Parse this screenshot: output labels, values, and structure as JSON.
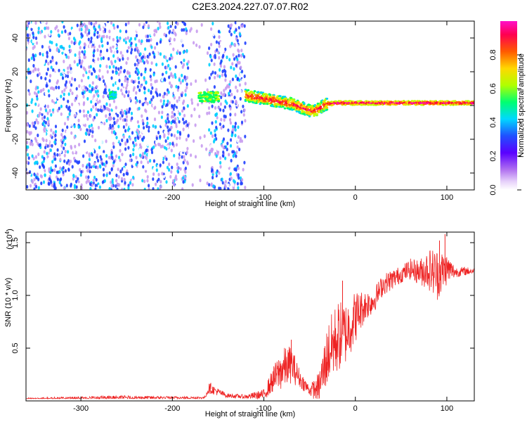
{
  "page": {
    "title": "C2E3.2024.227.07.07.R02"
  },
  "chart_data": [
    {
      "type": "heatmap",
      "title": "C2E3.2024.227.07.07.R02",
      "xlabel": "Height of straight line (km)",
      "ylabel": "Frequency (Hz)",
      "xlim": [
        -360,
        130
      ],
      "ylim": [
        -50,
        50
      ],
      "x_ticks": [
        -300,
        -200,
        -100,
        0,
        100
      ],
      "y_ticks": [
        -40,
        -20,
        0,
        20,
        40
      ],
      "colorbar": {
        "label": "Normalized spectral amplitude",
        "range": [
          0,
          1
        ],
        "ticks": [
          "0.0",
          "0.2",
          "0.4",
          "0.6",
          "0.8"
        ],
        "colormap": [
          "#ffffff",
          "#c89cf0",
          "#7a00ff",
          "#2040ff",
          "#00d0ff",
          "#00ff60",
          "#c0ff00",
          "#ffd000",
          "#ff6000",
          "#ff0040",
          "#ff00c0"
        ]
      },
      "noise_band": {
        "x_range": [
          -360,
          -120
        ],
        "gaps": [
          [
            -182,
            -160
          ]
        ],
        "white_gap_end": -122
      },
      "main_line": {
        "x": [
          -120,
          -110,
          -100,
          -90,
          -80,
          -70,
          -60,
          -50,
          -45,
          -40,
          -35,
          -30,
          -20,
          -10,
          0,
          20,
          40,
          60,
          80,
          100,
          130
        ],
        "freq": [
          6,
          5,
          4,
          3,
          2,
          1,
          -1,
          -3,
          -3,
          -2,
          0,
          1,
          1.5,
          1.5,
          1.5,
          1.5,
          1.5,
          1.5,
          1.5,
          1.5,
          1.5
        ]
      },
      "blobs": [
        {
          "x": -160,
          "freq": 5,
          "w": 22,
          "h": 6,
          "amp": 0.45
        },
        {
          "x": -265,
          "freq": 6,
          "w": 6,
          "h": 4,
          "amp": 0.35
        }
      ]
    },
    {
      "type": "line",
      "xlabel": "Height of straight line (km)",
      "ylabel": "SNR (10 * v/v)",
      "y_multiplier": "(x10^4)",
      "y_multiplier_base": "(x10",
      "y_multiplier_exp": "4",
      "y_multiplier_close": ")",
      "xlim": [
        -360,
        130
      ],
      "ylim": [
        0,
        1.6
      ],
      "x_ticks": [
        -300,
        -200,
        -100,
        0,
        100
      ],
      "y_ticks": [
        "0.5",
        "1.0",
        "1.5"
      ],
      "color": "#ee2222",
      "baseline": 0.02,
      "envelope": {
        "x": [
          -360,
          -260,
          -165,
          -160,
          -140,
          -120,
          -100,
          -90,
          -80,
          -70,
          -60,
          -50,
          -40,
          -30,
          -20,
          -10,
          0,
          10,
          20,
          30,
          40,
          50,
          60,
          70,
          80,
          90,
          100,
          110,
          120,
          130
        ],
        "mid": [
          0.02,
          0.03,
          0.03,
          0.12,
          0.05,
          0.04,
          0.06,
          0.2,
          0.3,
          0.35,
          0.2,
          0.1,
          0.12,
          0.45,
          0.6,
          0.65,
          0.8,
          0.9,
          0.95,
          1.1,
          1.15,
          1.2,
          1.25,
          1.22,
          1.25,
          1.2,
          1.25,
          1.22,
          1.23,
          1.23
        ],
        "amp": [
          0.01,
          0.02,
          0.01,
          0.05,
          0.02,
          0.02,
          0.05,
          0.12,
          0.2,
          0.18,
          0.08,
          0.05,
          0.15,
          0.3,
          0.35,
          0.3,
          0.25,
          0.15,
          0.12,
          0.1,
          0.1,
          0.08,
          0.1,
          0.12,
          0.2,
          0.25,
          0.15,
          0.05,
          0.04,
          0.03
        ]
      },
      "peaks": [
        {
          "x": 98,
          "y": 1.58
        },
        {
          "x": 92,
          "y": 1.52
        },
        {
          "x": -14,
          "y": 1.14
        },
        {
          "x": -70,
          "y": 0.58
        },
        {
          "x": -158,
          "y": 0.17
        }
      ]
    }
  ]
}
